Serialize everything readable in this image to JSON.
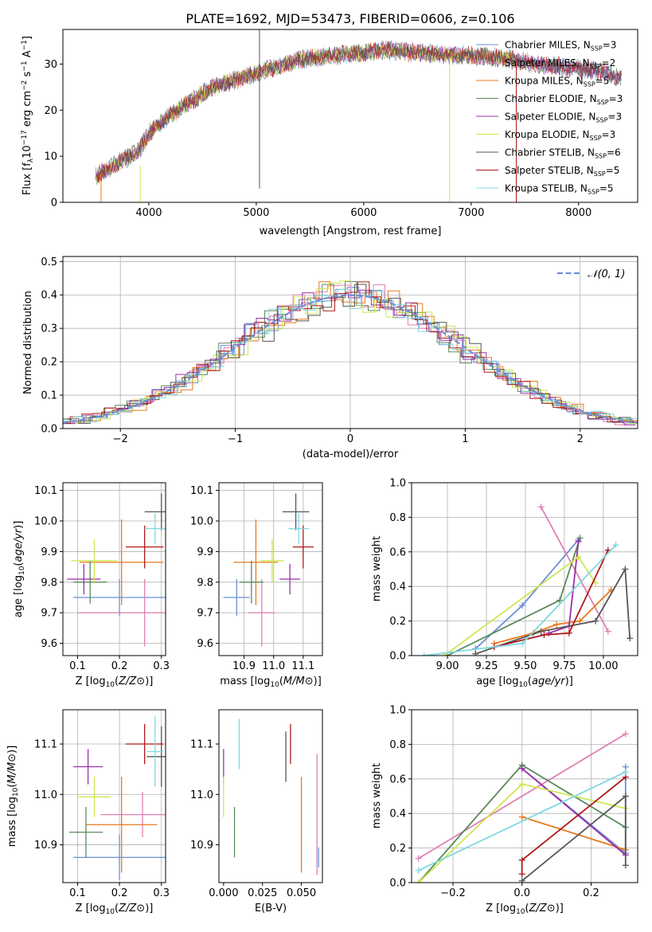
{
  "figure_title": "PLATE=1692, MJD=53473, FIBERID=0606, z=0.106",
  "colors": {
    "Chabrier MILES": "#6b8fd6",
    "Salpeter MILES": "#e07fb5",
    "Kroupa MILES": "#e8791e",
    "Chabrier ELODIE": "#5a8a5a",
    "Salpeter ELODIE": "#9b2fa8",
    "Kroupa ELODIE": "#cfe650",
    "Chabrier STELIB": "#555555",
    "Salpeter STELIB": "#b01818",
    "Kroupa STELIB": "#7fd8e0",
    "normal": "#6b8fd6",
    "grid": "#b0b0b0"
  },
  "chart_data": [
    {
      "id": "spectrum",
      "type": "line",
      "xlabel": "wavelength [Angstrom, rest frame]",
      "ylabel": "Flux [f_λ 10^-17 erg cm^-2 s^-1 A^-1]",
      "xlim": [
        3200,
        8550
      ],
      "ylim": [
        0,
        37.5
      ],
      "xticks": [
        "4000",
        "5000",
        "6000",
        "7000",
        "8000"
      ],
      "yticks": [
        "0",
        "10",
        "20",
        "30"
      ],
      "grid": false,
      "legend_position": "right",
      "legend": [
        {
          "label": "Chabrier MILES, N_SSP=3"
        },
        {
          "label": "Salpeter MILES, N_SSP=2"
        },
        {
          "label": "Kroupa MILES, N_SSP=5"
        },
        {
          "label": "Chabrier ELODIE, N_SSP=3"
        },
        {
          "label": "Salpeter ELODIE, N_SSP=3"
        },
        {
          "label": "Kroupa ELODIE, N_SSP=3"
        },
        {
          "label": "Chabrier STELIB, N_SSP=6"
        },
        {
          "label": "Salpeter STELIB, N_SSP=5"
        },
        {
          "label": "Kroupa STELIB, N_SSP=5"
        }
      ],
      "continuum": [
        [
          3500,
          5.5
        ],
        [
          3700,
          8.5
        ],
        [
          3900,
          11
        ],
        [
          4000,
          15
        ],
        [
          4200,
          19
        ],
        [
          4400,
          22
        ],
        [
          4600,
          25
        ],
        [
          4800,
          26.5
        ],
        [
          5000,
          28
        ],
        [
          5200,
          29.5
        ],
        [
          5400,
          31
        ],
        [
          5600,
          31.5
        ],
        [
          5800,
          32
        ],
        [
          6000,
          32.5
        ],
        [
          6200,
          33
        ],
        [
          6500,
          32.5
        ],
        [
          6800,
          32
        ],
        [
          7000,
          32
        ],
        [
          7200,
          31.5
        ],
        [
          7400,
          31
        ],
        [
          7600,
          30
        ],
        [
          7800,
          29.5
        ],
        [
          8000,
          29
        ],
        [
          8200,
          28.5
        ],
        [
          8400,
          27
        ]
      ],
      "spikes": [
        {
          "x": 5030,
          "y0": 3,
          "y1": 37.5
        },
        {
          "x": 3920,
          "y0": 0,
          "y1": 8
        },
        {
          "x": 6800,
          "y0": 0,
          "y1": 30
        },
        {
          "x": 7420,
          "y0": 0,
          "y1": 31
        },
        {
          "x": 3555,
          "y0": 0,
          "y1": 6
        }
      ]
    },
    {
      "id": "residual_histogram",
      "type": "step",
      "xlabel": "(data-model)/error",
      "ylabel": "Normed distribution",
      "xlim": [
        -2.5,
        2.5
      ],
      "ylim": [
        0,
        0.515
      ],
      "xticks": [
        "−2",
        "−1",
        "0",
        "1",
        "2"
      ],
      "yticks": [
        "0.0",
        "0.1",
        "0.2",
        "0.3",
        "0.4",
        "0.5"
      ],
      "grid": true,
      "legend_position": "top-right",
      "legend": [
        {
          "label": "𝒩(0, 1)"
        }
      ],
      "bin_width": 0.1
    },
    {
      "id": "age_vs_Z",
      "type": "errorbar",
      "xlabel": "Z [log10(Z/Z⊙)]",
      "ylabel": "age  [log10(age/yr)]",
      "xlim": [
        0.065,
        0.31
      ],
      "ylim": [
        9.56,
        10.125
      ],
      "xticks": [
        "0.1",
        "0.2",
        "0.3"
      ],
      "yticks": [
        "9.6",
        "9.7",
        "9.8",
        "9.9",
        "10.0",
        "10.1"
      ],
      "grid": true,
      "points": [
        {
          "model": "Chabrier MILES",
          "x": 0.2,
          "xerr": 0.11,
          "y": 9.75,
          "yerr": 0.06
        },
        {
          "model": "Salpeter MILES",
          "x": 0.26,
          "xerr": 0.16,
          "y": 9.7,
          "yerr": 0.11
        },
        {
          "model": "Kroupa MILES",
          "x": 0.205,
          "xerr": 0.1,
          "y": 9.865,
          "yerr": 0.14
        },
        {
          "model": "Chabrier ELODIE",
          "x": 0.13,
          "xerr": 0.04,
          "y": 9.8,
          "yerr": 0.07
        },
        {
          "model": "Salpeter ELODIE",
          "x": 0.115,
          "xerr": 0.04,
          "y": 9.81,
          "yerr": 0.05
        },
        {
          "model": "Kroupa ELODIE",
          "x": 0.14,
          "xerr": 0.055,
          "y": 9.87,
          "yerr": 0.07
        },
        {
          "model": "Chabrier STELIB",
          "x": 0.3,
          "xerr": 0.04,
          "y": 10.03,
          "yerr": 0.06
        },
        {
          "model": "Salpeter STELIB",
          "x": 0.26,
          "xerr": 0.045,
          "y": 9.915,
          "yerr": 0.07
        },
        {
          "model": "Kroupa STELIB",
          "x": 0.285,
          "xerr": 0.025,
          "y": 9.975,
          "yerr": 0.05
        }
      ]
    },
    {
      "id": "age_vs_mass",
      "type": "errorbar",
      "xlabel": "mass [log10(M/M⊙)]",
      "ylabel": "",
      "xlim": [
        10.815,
        11.165
      ],
      "ylim": [
        9.56,
        10.125
      ],
      "xticks": [
        "10.9",
        "11.0",
        "11.1"
      ],
      "yticks": [
        "9.6",
        "9.7",
        "9.8",
        "9.9",
        "10.0",
        "10.1"
      ],
      "grid": true,
      "points": [
        {
          "model": "Chabrier MILES",
          "x": 10.875,
          "xerr": 0.045,
          "y": 9.75,
          "yerr": 0.06
        },
        {
          "model": "Salpeter MILES",
          "x": 10.96,
          "xerr": 0.045,
          "y": 9.7,
          "yerr": 0.11
        },
        {
          "model": "Kroupa MILES",
          "x": 10.94,
          "xerr": 0.075,
          "y": 9.865,
          "yerr": 0.14
        },
        {
          "model": "Chabrier ELODIE",
          "x": 10.925,
          "xerr": 0.04,
          "y": 9.8,
          "yerr": 0.07
        },
        {
          "model": "Salpeter ELODIE",
          "x": 11.055,
          "xerr": 0.035,
          "y": 9.81,
          "yerr": 0.05
        },
        {
          "model": "Kroupa ELODIE",
          "x": 10.995,
          "xerr": 0.04,
          "y": 9.87,
          "yerr": 0.07
        },
        {
          "model": "Chabrier STELIB",
          "x": 11.075,
          "xerr": 0.045,
          "y": 10.03,
          "yerr": 0.06
        },
        {
          "model": "Salpeter STELIB",
          "x": 11.1,
          "xerr": 0.035,
          "y": 9.915,
          "yerr": 0.07
        },
        {
          "model": "Kroupa STELIB",
          "x": 11.085,
          "xerr": 0.035,
          "y": 9.975,
          "yerr": 0.05
        }
      ]
    },
    {
      "id": "weight_vs_age",
      "type": "line",
      "xlabel": "age  [log10(age/yr)]",
      "ylabel": "mass weight",
      "xlim": [
        8.77,
        10.22
      ],
      "ylim": [
        0,
        1.0
      ],
      "xticks": [
        "9.00",
        "9.25",
        "9.50",
        "9.75",
        "10.00"
      ],
      "yticks": [
        "0.0",
        "0.2",
        "0.4",
        "0.6",
        "0.8",
        "1.0"
      ],
      "grid": true,
      "series": [
        {
          "model": "Chabrier MILES",
          "x": [
            9.18,
            9.48,
            9.84
          ],
          "y": [
            0.04,
            0.29,
            0.67
          ]
        },
        {
          "model": "Salpeter MILES",
          "x": [
            9.6,
            10.03
          ],
          "y": [
            0.86,
            0.14
          ]
        },
        {
          "model": "Kroupa MILES",
          "x": [
            9.3,
            9.55,
            9.7,
            9.85,
            10.05
          ],
          "y": [
            0.07,
            0.13,
            0.18,
            0.2,
            0.38
          ]
        },
        {
          "model": "Chabrier ELODIE",
          "x": [
            9.0,
            9.72,
            9.85
          ],
          "y": [
            0.0,
            0.32,
            0.68
          ]
        },
        {
          "model": "Salpeter ELODIE",
          "x": [
            9.65,
            9.78,
            9.84
          ],
          "y": [
            0.13,
            0.17,
            0.66
          ]
        },
        {
          "model": "Kroupa ELODIE",
          "x": [
            8.98,
            9.84,
            9.95
          ],
          "y": [
            0.0,
            0.57,
            0.42
          ]
        },
        {
          "model": "Chabrier STELIB",
          "x": [
            9.18,
            9.6,
            9.95,
            10.14,
            10.17
          ],
          "y": [
            0.01,
            0.14,
            0.2,
            0.5,
            0.1
          ]
        },
        {
          "model": "Salpeter STELIB",
          "x": [
            9.3,
            9.62,
            9.78,
            10.03
          ],
          "y": [
            0.05,
            0.12,
            0.13,
            0.61
          ]
        },
        {
          "model": "Kroupa STELIB",
          "x": [
            8.85,
            9.48,
            10.08
          ],
          "y": [
            0.0,
            0.07,
            0.64
          ]
        }
      ]
    },
    {
      "id": "mass_vs_Z",
      "type": "errorbar",
      "xlabel": "Z [log10(Z/Z⊙)]",
      "ylabel": "mass [log10(M/M⊙)]",
      "xlim": [
        0.065,
        0.31
      ],
      "ylim": [
        10.825,
        11.168
      ],
      "xticks": [
        "0.1",
        "0.2",
        "0.3"
      ],
      "yticks": [
        "10.9",
        "11.0",
        "11.1"
      ],
      "grid": true,
      "points": [
        {
          "model": "Chabrier MILES",
          "x": 0.2,
          "xerr": 0.11,
          "y": 10.875,
          "yerr": 0.045
        },
        {
          "model": "Salpeter MILES",
          "x": 0.255,
          "xerr": 0.1,
          "y": 10.96,
          "yerr": 0.045
        },
        {
          "model": "Kroupa MILES",
          "x": 0.205,
          "xerr": 0.085,
          "y": 10.94,
          "yerr": 0.095
        },
        {
          "model": "Chabrier ELODIE",
          "x": 0.12,
          "xerr": 0.04,
          "y": 10.925,
          "yerr": 0.05
        },
        {
          "model": "Salpeter ELODIE",
          "x": 0.125,
          "xerr": 0.035,
          "y": 11.055,
          "yerr": 0.035
        },
        {
          "model": "Kroupa ELODIE",
          "x": 0.14,
          "xerr": 0.04,
          "y": 10.995,
          "yerr": 0.04
        },
        {
          "model": "Chabrier STELIB",
          "x": 0.3,
          "xerr": 0.035,
          "y": 11.075,
          "yerr": 0.06
        },
        {
          "model": "Salpeter STELIB",
          "x": 0.26,
          "xerr": 0.045,
          "y": 11.1,
          "yerr": 0.04
        },
        {
          "model": "Kroupa STELIB",
          "x": 0.285,
          "xerr": 0.02,
          "y": 11.085,
          "yerr": 0.07
        }
      ]
    },
    {
      "id": "mass_vs_ebv",
      "type": "errorbar",
      "xlabel": "E(B-V)",
      "ylabel": "",
      "xlim": [
        -0.003,
        0.0635
      ],
      "ylim": [
        10.825,
        11.168
      ],
      "xticks": [
        "0.000",
        "0.025",
        "0.050"
      ],
      "yticks": [
        "10.9",
        "11.0",
        "11.1"
      ],
      "grid": false,
      "points": [
        {
          "model": "Chabrier MILES",
          "x": 0.061,
          "xerr": 0,
          "y": 10.875,
          "yerr": 0.02
        },
        {
          "model": "Salpeter MILES",
          "x": 0.06,
          "xerr": 0,
          "y": 10.96,
          "yerr": 0.12
        },
        {
          "model": "Kroupa MILES",
          "x": 0.05,
          "xerr": 0,
          "y": 10.94,
          "yerr": 0.095
        },
        {
          "model": "Chabrier ELODIE",
          "x": 0.007,
          "xerr": 0,
          "y": 10.925,
          "yerr": 0.05
        },
        {
          "model": "Salpeter ELODIE",
          "x": 0.0,
          "xerr": 0,
          "y": 11.055,
          "yerr": 0.035
        },
        {
          "model": "Kroupa ELODIE",
          "x": 0.0,
          "xerr": 0,
          "y": 10.995,
          "yerr": 0.04
        },
        {
          "model": "Chabrier STELIB",
          "x": 0.04,
          "xerr": 0,
          "y": 11.075,
          "yerr": 0.05
        },
        {
          "model": "Salpeter STELIB",
          "x": 0.043,
          "xerr": 0,
          "y": 11.1,
          "yerr": 0.04
        },
        {
          "model": "Kroupa STELIB",
          "x": 0.01,
          "xerr": 0,
          "y": 11.1,
          "yerr": 0.05
        }
      ]
    },
    {
      "id": "weight_vs_Z",
      "type": "line",
      "xlabel": "Z [log10(Z/Z⊙)]",
      "ylabel": "mass weight",
      "xlim": [
        -0.32,
        0.335
      ],
      "ylim": [
        0,
        1.0
      ],
      "xticks": [
        "−0.2",
        "0.0",
        "0.2"
      ],
      "yticks": [
        "0.0",
        "0.2",
        "0.4",
        "0.6",
        "0.8",
        "1.0"
      ],
      "grid": true,
      "series": [
        {
          "model": "Chabrier MILES",
          "x": [
            0.0,
            0.3,
            0.3
          ],
          "y": [
            0.66,
            0.17,
            0.67
          ]
        },
        {
          "model": "Salpeter MILES",
          "x": [
            -0.3,
            0.3
          ],
          "y": [
            0.14,
            0.86
          ]
        },
        {
          "model": "Kroupa MILES",
          "x": [
            0.0,
            0.3
          ],
          "y": [
            0.38,
            0.19
          ]
        },
        {
          "model": "Chabrier ELODIE",
          "x": [
            -0.3,
            0.0,
            0.3
          ],
          "y": [
            0.0,
            0.68,
            0.32
          ]
        },
        {
          "model": "Salpeter ELODIE",
          "x": [
            0.0,
            0.3
          ],
          "y": [
            0.66,
            0.16
          ]
        },
        {
          "model": "Kroupa ELODIE",
          "x": [
            -0.3,
            0.0,
            0.3
          ],
          "y": [
            0.0,
            0.57,
            0.43
          ]
        },
        {
          "model": "Chabrier STELIB",
          "x": [
            0.0,
            0.3,
            0.3
          ],
          "y": [
            0.01,
            0.5,
            0.1
          ]
        },
        {
          "model": "Salpeter STELIB",
          "x": [
            0.0,
            0.0,
            0.3
          ],
          "y": [
            0.05,
            0.13,
            0.61
          ]
        },
        {
          "model": "Kroupa STELIB",
          "x": [
            -0.3,
            0.3
          ],
          "y": [
            0.07,
            0.64
          ]
        }
      ]
    }
  ]
}
